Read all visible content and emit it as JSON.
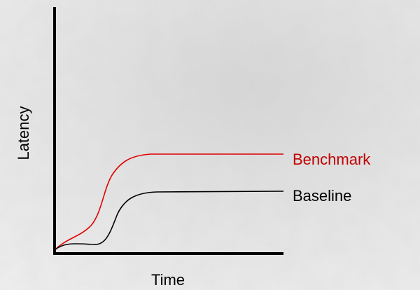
{
  "axes": {
    "y_label": "Latency",
    "x_label": "Time"
  },
  "series": [
    {
      "label": "Benchmark"
    },
    {
      "label": "Baseline"
    }
  ]
}
